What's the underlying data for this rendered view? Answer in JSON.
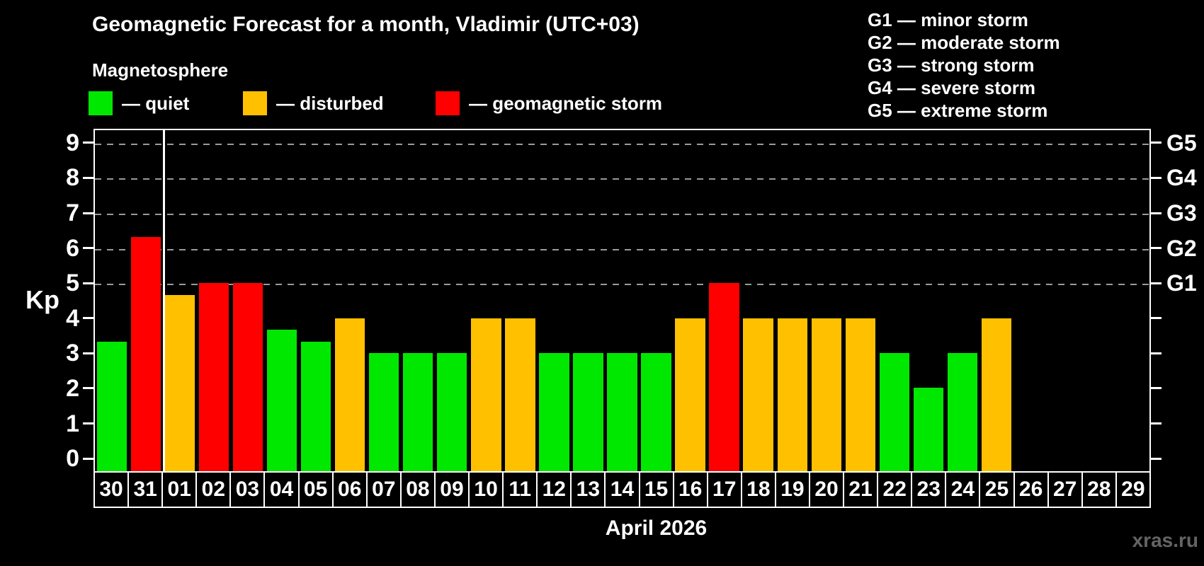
{
  "header": {
    "title": "Geomagnetic Forecast for a month, Vladimir (UTC+03)",
    "subtitle": "Magnetosphere"
  },
  "legend": {
    "items": [
      {
        "key": "quiet",
        "label": "— quiet",
        "color": "#00e800"
      },
      {
        "key": "disturbed",
        "label": "— disturbed",
        "color": "#ffc000"
      },
      {
        "key": "storm",
        "label": "— geomagnetic storm",
        "color": "#ff0000"
      }
    ]
  },
  "g_scale_legend": {
    "items": [
      "G1 — minor storm",
      "G2 — moderate storm",
      "G3 — strong storm",
      "G4 — severe storm",
      "G5 — extreme storm"
    ]
  },
  "axis": {
    "kp_label": "Kp",
    "kp_ticks": [
      "0",
      "1",
      "2",
      "3",
      "4",
      "5",
      "6",
      "7",
      "8",
      "9"
    ],
    "g_ticks": [
      {
        "kp": 5,
        "label": "G1"
      },
      {
        "kp": 6,
        "label": "G2"
      },
      {
        "kp": 7,
        "label": "G3"
      },
      {
        "kp": 8,
        "label": "G4"
      },
      {
        "kp": 9,
        "label": "G5"
      }
    ]
  },
  "footer": {
    "month_label": "April 2026",
    "watermark": "xras.ru"
  },
  "chart_data": {
    "type": "bar",
    "title": "Geomagnetic Forecast for a month, Vladimir (UTC+03)",
    "xlabel": "April 2026",
    "ylabel": "Kp",
    "ylim": [
      -0.4,
      9.4
    ],
    "grid_on": true,
    "gridlines_at_kp": [
      5,
      6,
      7,
      8,
      9
    ],
    "month_separator_after_index": 1,
    "categories": [
      "30",
      "31",
      "01",
      "02",
      "03",
      "04",
      "05",
      "06",
      "07",
      "08",
      "09",
      "10",
      "11",
      "12",
      "13",
      "14",
      "15",
      "16",
      "17",
      "18",
      "19",
      "20",
      "21",
      "22",
      "23",
      "24",
      "25",
      "26",
      "27",
      "28",
      "29"
    ],
    "values": [
      3.33,
      6.33,
      4.67,
      5,
      5,
      3.67,
      3.33,
      4,
      3,
      3,
      3,
      4,
      4,
      3,
      3,
      3,
      3,
      4,
      5,
      4,
      4,
      4,
      4,
      3,
      2,
      3,
      4,
      null,
      null,
      null,
      null
    ],
    "states": [
      "quiet",
      "storm",
      "disturbed",
      "storm",
      "storm",
      "quiet",
      "quiet",
      "disturbed",
      "quiet",
      "quiet",
      "quiet",
      "disturbed",
      "disturbed",
      "quiet",
      "quiet",
      "quiet",
      "quiet",
      "disturbed",
      "storm",
      "disturbed",
      "disturbed",
      "disturbed",
      "disturbed",
      "quiet",
      "quiet",
      "quiet",
      "disturbed",
      null,
      null,
      null,
      null
    ],
    "state_colors": {
      "quiet": "#00e800",
      "disturbed": "#ffc000",
      "storm": "#ff0000"
    }
  }
}
